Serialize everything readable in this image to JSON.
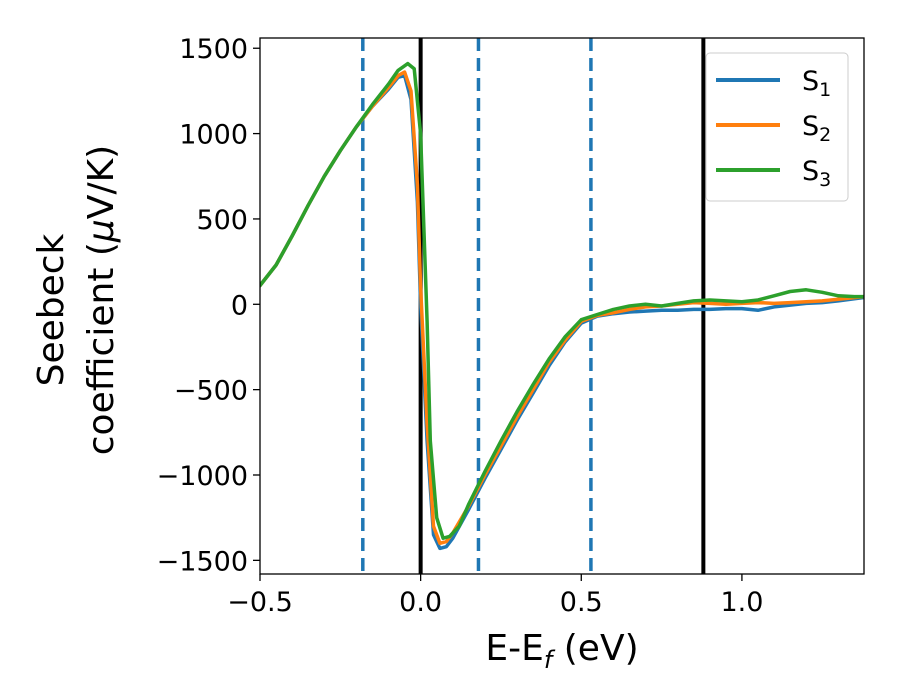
{
  "chart_data": {
    "type": "line",
    "xlabel": {
      "main": "E-E",
      "sub": "f",
      "unit": " (eV)"
    },
    "ylabel": {
      "line1": "Seebeck",
      "line2": "coefficient  (",
      "mu": "μ",
      "unit": "V/K)"
    },
    "xlim": [
      -0.5,
      1.38
    ],
    "ylim": [
      -1580,
      1560
    ],
    "x_ticks": [
      -0.5,
      0.0,
      0.5,
      1.0
    ],
    "x_tick_labels": [
      "−0.5",
      "0.0",
      "0.5",
      "1.0"
    ],
    "y_ticks": [
      -1500,
      -1000,
      -500,
      0,
      500,
      1000,
      1500
    ],
    "y_tick_labels": [
      "−1500",
      "−1000",
      "−500",
      "0",
      "500",
      "1000",
      "1500"
    ],
    "grid": false,
    "legend_position": "top-right",
    "vertical_lines": [
      {
        "x": -0.18,
        "style": "dashed",
        "color": "#1f77b4"
      },
      {
        "x": 0.0,
        "style": "solid",
        "color": "#000000"
      },
      {
        "x": 0.18,
        "style": "dashed",
        "color": "#1f77b4"
      },
      {
        "x": 0.53,
        "style": "dashed",
        "color": "#1f77b4"
      },
      {
        "x": 0.88,
        "style": "solid",
        "color": "#000000"
      }
    ],
    "series": [
      {
        "name": "S",
        "sub": "1",
        "color": "#1f77b4",
        "points": [
          [
            -0.5,
            110
          ],
          [
            -0.45,
            230
          ],
          [
            -0.4,
            400
          ],
          [
            -0.35,
            580
          ],
          [
            -0.3,
            750
          ],
          [
            -0.25,
            900
          ],
          [
            -0.2,
            1040
          ],
          [
            -0.15,
            1160
          ],
          [
            -0.1,
            1260
          ],
          [
            -0.07,
            1330
          ],
          [
            -0.05,
            1340
          ],
          [
            -0.03,
            1200
          ],
          [
            -0.01,
            600
          ],
          [
            0.0,
            0
          ],
          [
            0.02,
            -800
          ],
          [
            0.04,
            -1350
          ],
          [
            0.06,
            -1430
          ],
          [
            0.08,
            -1420
          ],
          [
            0.1,
            -1370
          ],
          [
            0.15,
            -1200
          ],
          [
            0.2,
            -1020
          ],
          [
            0.25,
            -850
          ],
          [
            0.3,
            -680
          ],
          [
            0.35,
            -520
          ],
          [
            0.4,
            -360
          ],
          [
            0.45,
            -220
          ],
          [
            0.5,
            -110
          ],
          [
            0.55,
            -70
          ],
          [
            0.6,
            -55
          ],
          [
            0.65,
            -45
          ],
          [
            0.7,
            -40
          ],
          [
            0.75,
            -35
          ],
          [
            0.8,
            -35
          ],
          [
            0.85,
            -30
          ],
          [
            0.9,
            -30
          ],
          [
            0.95,
            -25
          ],
          [
            1.0,
            -25
          ],
          [
            1.05,
            -35
          ],
          [
            1.1,
            -15
          ],
          [
            1.15,
            -5
          ],
          [
            1.2,
            5
          ],
          [
            1.25,
            10
          ],
          [
            1.3,
            20
          ],
          [
            1.38,
            40
          ]
        ]
      },
      {
        "name": "S",
        "sub": "2",
        "color": "#ff7f0e",
        "points": [
          [
            -0.5,
            110
          ],
          [
            -0.45,
            230
          ],
          [
            -0.4,
            400
          ],
          [
            -0.35,
            580
          ],
          [
            -0.3,
            750
          ],
          [
            -0.25,
            900
          ],
          [
            -0.2,
            1040
          ],
          [
            -0.15,
            1160
          ],
          [
            -0.1,
            1270
          ],
          [
            -0.07,
            1340
          ],
          [
            -0.05,
            1360
          ],
          [
            -0.03,
            1250
          ],
          [
            -0.01,
            700
          ],
          [
            0.0,
            100
          ],
          [
            0.02,
            -700
          ],
          [
            0.04,
            -1300
          ],
          [
            0.06,
            -1400
          ],
          [
            0.08,
            -1390
          ],
          [
            0.1,
            -1340
          ],
          [
            0.15,
            -1180
          ],
          [
            0.2,
            -1000
          ],
          [
            0.25,
            -830
          ],
          [
            0.3,
            -660
          ],
          [
            0.35,
            -500
          ],
          [
            0.4,
            -340
          ],
          [
            0.45,
            -210
          ],
          [
            0.5,
            -100
          ],
          [
            0.55,
            -65
          ],
          [
            0.6,
            -50
          ],
          [
            0.65,
            -30
          ],
          [
            0.7,
            -15
          ],
          [
            0.75,
            -10
          ],
          [
            0.8,
            0
          ],
          [
            0.85,
            10
          ],
          [
            0.9,
            5
          ],
          [
            0.95,
            0
          ],
          [
            1.0,
            5
          ],
          [
            1.05,
            10
          ],
          [
            1.1,
            5
          ],
          [
            1.15,
            10
          ],
          [
            1.2,
            15
          ],
          [
            1.25,
            20
          ],
          [
            1.3,
            30
          ],
          [
            1.38,
            45
          ]
        ]
      },
      {
        "name": "S",
        "sub": "3",
        "color": "#2ca02c",
        "points": [
          [
            -0.5,
            110
          ],
          [
            -0.45,
            230
          ],
          [
            -0.4,
            400
          ],
          [
            -0.35,
            580
          ],
          [
            -0.3,
            750
          ],
          [
            -0.25,
            900
          ],
          [
            -0.2,
            1040
          ],
          [
            -0.15,
            1170
          ],
          [
            -0.1,
            1290
          ],
          [
            -0.07,
            1370
          ],
          [
            -0.04,
            1410
          ],
          [
            -0.02,
            1380
          ],
          [
            0.0,
            1000
          ],
          [
            0.02,
            -100
          ],
          [
            0.03,
            -800
          ],
          [
            0.05,
            -1250
          ],
          [
            0.07,
            -1370
          ],
          [
            0.09,
            -1360
          ],
          [
            0.12,
            -1300
          ],
          [
            0.15,
            -1170
          ],
          [
            0.2,
            -980
          ],
          [
            0.25,
            -800
          ],
          [
            0.3,
            -630
          ],
          [
            0.35,
            -470
          ],
          [
            0.4,
            -320
          ],
          [
            0.45,
            -190
          ],
          [
            0.5,
            -90
          ],
          [
            0.55,
            -60
          ],
          [
            0.6,
            -30
          ],
          [
            0.65,
            -10
          ],
          [
            0.7,
            0
          ],
          [
            0.75,
            -10
          ],
          [
            0.8,
            5
          ],
          [
            0.85,
            20
          ],
          [
            0.9,
            25
          ],
          [
            0.95,
            20
          ],
          [
            1.0,
            15
          ],
          [
            1.05,
            25
          ],
          [
            1.1,
            50
          ],
          [
            1.15,
            75
          ],
          [
            1.2,
            85
          ],
          [
            1.25,
            70
          ],
          [
            1.3,
            50
          ],
          [
            1.35,
            45
          ],
          [
            1.38,
            45
          ]
        ]
      }
    ]
  }
}
